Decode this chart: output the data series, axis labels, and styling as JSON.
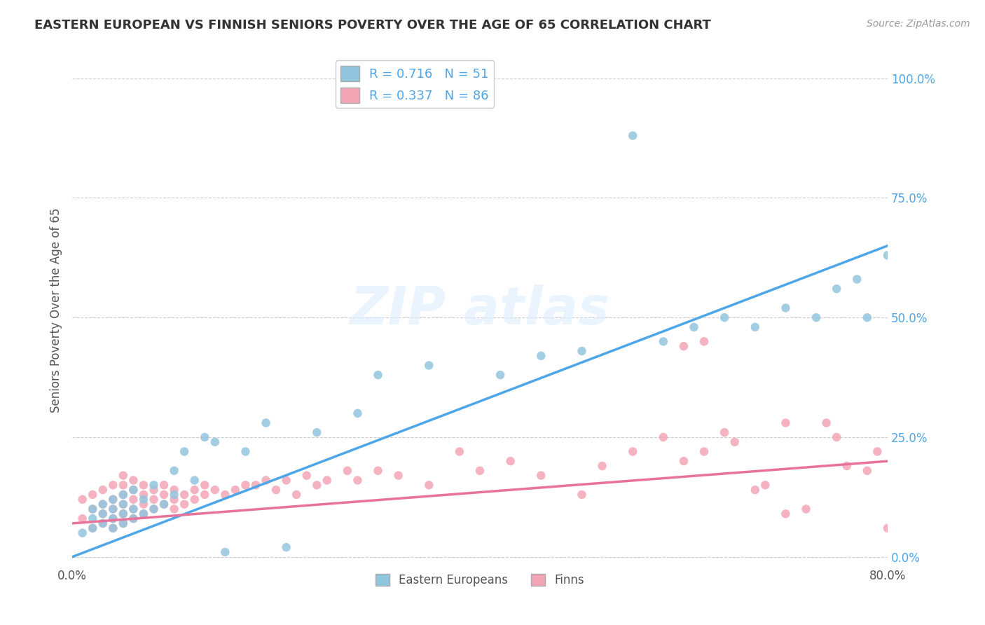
{
  "title": "EASTERN EUROPEAN VS FINNISH SENIORS POVERTY OVER THE AGE OF 65 CORRELATION CHART",
  "source": "Source: ZipAtlas.com",
  "ylabel": "Seniors Poverty Over the Age of 65",
  "ytick_labels": [
    "0.0%",
    "25.0%",
    "50.0%",
    "75.0%",
    "100.0%"
  ],
  "ytick_values": [
    0.0,
    0.25,
    0.5,
    0.75,
    1.0
  ],
  "xlim": [
    0.0,
    0.8
  ],
  "ylim": [
    -0.02,
    1.05
  ],
  "legend_label1": "Eastern Europeans",
  "legend_label2": "Finns",
  "r1": 0.716,
  "n1": 51,
  "r2": 0.337,
  "n2": 86,
  "color1": "#92c5de",
  "color2": "#f4a5b5",
  "line_color1": "#4da6e8",
  "line_color2": "#e8729a",
  "background_color": "#ffffff",
  "grid_color": "#cccccc",
  "title_color": "#333333",
  "title_fontsize": 13,
  "blue_line_x0": 0.0,
  "blue_line_y0": 0.0,
  "blue_line_x1": 0.8,
  "blue_line_y1": 0.65,
  "pink_line_x0": 0.0,
  "pink_line_y0": 0.07,
  "pink_line_x1": 0.8,
  "pink_line_y1": 0.2,
  "scatter1_x": [
    0.01,
    0.02,
    0.02,
    0.02,
    0.03,
    0.03,
    0.03,
    0.04,
    0.04,
    0.04,
    0.04,
    0.05,
    0.05,
    0.05,
    0.05,
    0.06,
    0.06,
    0.06,
    0.07,
    0.07,
    0.08,
    0.08,
    0.09,
    0.1,
    0.1,
    0.11,
    0.12,
    0.13,
    0.14,
    0.15,
    0.17,
    0.19,
    0.21,
    0.24,
    0.28,
    0.3,
    0.35,
    0.42,
    0.46,
    0.5,
    0.55,
    0.58,
    0.61,
    0.64,
    0.67,
    0.7,
    0.73,
    0.75,
    0.77,
    0.78,
    0.8
  ],
  "scatter1_y": [
    0.05,
    0.08,
    0.06,
    0.1,
    0.07,
    0.09,
    0.11,
    0.06,
    0.08,
    0.1,
    0.12,
    0.07,
    0.09,
    0.11,
    0.13,
    0.08,
    0.1,
    0.14,
    0.09,
    0.12,
    0.1,
    0.15,
    0.11,
    0.13,
    0.18,
    0.22,
    0.16,
    0.25,
    0.24,
    0.01,
    0.22,
    0.28,
    0.02,
    0.26,
    0.3,
    0.38,
    0.4,
    0.38,
    0.42,
    0.43,
    0.88,
    0.45,
    0.48,
    0.5,
    0.48,
    0.52,
    0.5,
    0.56,
    0.58,
    0.5,
    0.63
  ],
  "scatter2_x": [
    0.01,
    0.01,
    0.02,
    0.02,
    0.02,
    0.03,
    0.03,
    0.03,
    0.03,
    0.04,
    0.04,
    0.04,
    0.04,
    0.04,
    0.05,
    0.05,
    0.05,
    0.05,
    0.05,
    0.05,
    0.06,
    0.06,
    0.06,
    0.06,
    0.06,
    0.07,
    0.07,
    0.07,
    0.07,
    0.08,
    0.08,
    0.08,
    0.09,
    0.09,
    0.09,
    0.1,
    0.1,
    0.1,
    0.11,
    0.11,
    0.12,
    0.12,
    0.13,
    0.13,
    0.14,
    0.15,
    0.16,
    0.17,
    0.18,
    0.19,
    0.2,
    0.21,
    0.22,
    0.23,
    0.24,
    0.25,
    0.27,
    0.28,
    0.3,
    0.32,
    0.35,
    0.38,
    0.4,
    0.43,
    0.46,
    0.5,
    0.52,
    0.55,
    0.58,
    0.6,
    0.62,
    0.64,
    0.65,
    0.68,
    0.7,
    0.72,
    0.75,
    0.76,
    0.78,
    0.79,
    0.8,
    0.6,
    0.62,
    0.67,
    0.7,
    0.74
  ],
  "scatter2_y": [
    0.08,
    0.12,
    0.06,
    0.1,
    0.13,
    0.07,
    0.09,
    0.11,
    0.14,
    0.06,
    0.08,
    0.1,
    0.12,
    0.15,
    0.07,
    0.09,
    0.11,
    0.13,
    0.15,
    0.17,
    0.08,
    0.1,
    0.12,
    0.14,
    0.16,
    0.09,
    0.11,
    0.13,
    0.15,
    0.1,
    0.12,
    0.14,
    0.11,
    0.13,
    0.15,
    0.1,
    0.12,
    0.14,
    0.11,
    0.13,
    0.12,
    0.14,
    0.13,
    0.15,
    0.14,
    0.13,
    0.14,
    0.15,
    0.15,
    0.16,
    0.14,
    0.16,
    0.13,
    0.17,
    0.15,
    0.16,
    0.18,
    0.16,
    0.18,
    0.17,
    0.15,
    0.22,
    0.18,
    0.2,
    0.17,
    0.13,
    0.19,
    0.22,
    0.25,
    0.2,
    0.22,
    0.26,
    0.24,
    0.15,
    0.28,
    0.1,
    0.25,
    0.19,
    0.18,
    0.22,
    0.06,
    0.44,
    0.45,
    0.14,
    0.09,
    0.28
  ]
}
